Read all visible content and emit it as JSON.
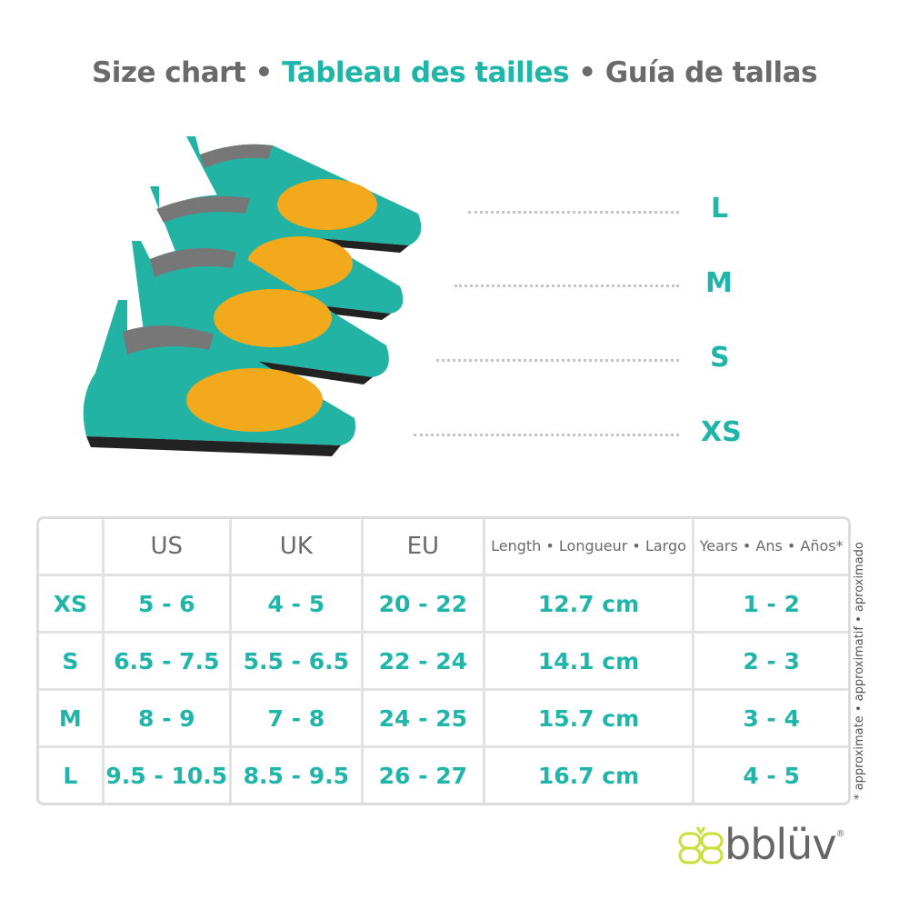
{
  "title": {
    "part1": "Size chart •",
    "part2": "Tableau des tailles",
    "part3": "• Guía de tallas"
  },
  "colors": {
    "accent": "#1fb5a8",
    "text": "#6a6a6a",
    "shoe_body": "#23b3a4",
    "crab": "#f2a91b",
    "logo_icon": "#c9df3a"
  },
  "shoe_sizes": [
    "L",
    "M",
    "S",
    "XS"
  ],
  "table": {
    "headers": [
      "",
      "US",
      "UK",
      "EU",
      "Length • Longueur • Largo",
      "Years • Ans • Años*"
    ],
    "rows": [
      [
        "XS",
        "5 - 6",
        "4 - 5",
        "20 - 22",
        "12.7 cm",
        "1 - 2"
      ],
      [
        "S",
        "6.5 - 7.5",
        "5.5 - 6.5",
        "22 - 24",
        "14.1 cm",
        "2 - 3"
      ],
      [
        "M",
        "8 - 9",
        "7 - 8",
        "24 - 25",
        "15.7 cm",
        "3 - 4"
      ],
      [
        "L",
        "9.5 - 10.5",
        "8.5 - 9.5",
        "26 - 27",
        "16.7 cm",
        "4 - 5"
      ]
    ]
  },
  "footnote": "* approximate • approximatif • aproximado",
  "logo": {
    "text": "bblüv",
    "mark": "®"
  }
}
